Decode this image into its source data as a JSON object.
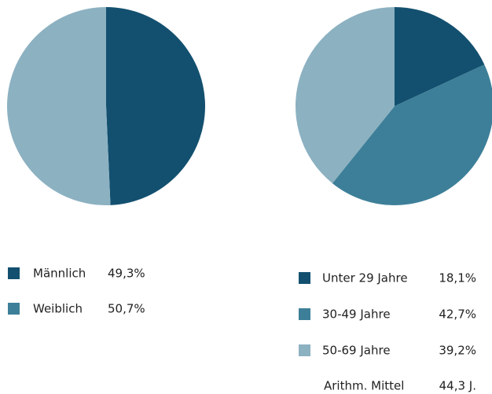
{
  "chart_data": [
    {
      "type": "pie",
      "categories": [
        "Männlich",
        "Weiblich"
      ],
      "values": [
        49.3,
        50.7
      ],
      "value_labels": [
        "49,3%",
        "50,7%"
      ],
      "colors": [
        "#13506f",
        "#8cb1c1"
      ],
      "legend_colors": [
        "#13506f",
        "#3d7f98"
      ]
    },
    {
      "type": "pie",
      "categories": [
        "Unter 29 Jahre",
        "30-49 Jahre",
        "50-69 Jahre"
      ],
      "values": [
        18.1,
        42.7,
        39.2
      ],
      "value_labels": [
        "18,1%",
        "42,7%",
        "39,2%"
      ],
      "colors": [
        "#13506f",
        "#3d7f98",
        "#8cb1c1"
      ],
      "legend_colors": [
        "#13506f",
        "#3d7f98",
        "#8cb1c1"
      ],
      "annotation": {
        "label": "Arithm. Mittel",
        "value": "44,3 J."
      }
    }
  ]
}
